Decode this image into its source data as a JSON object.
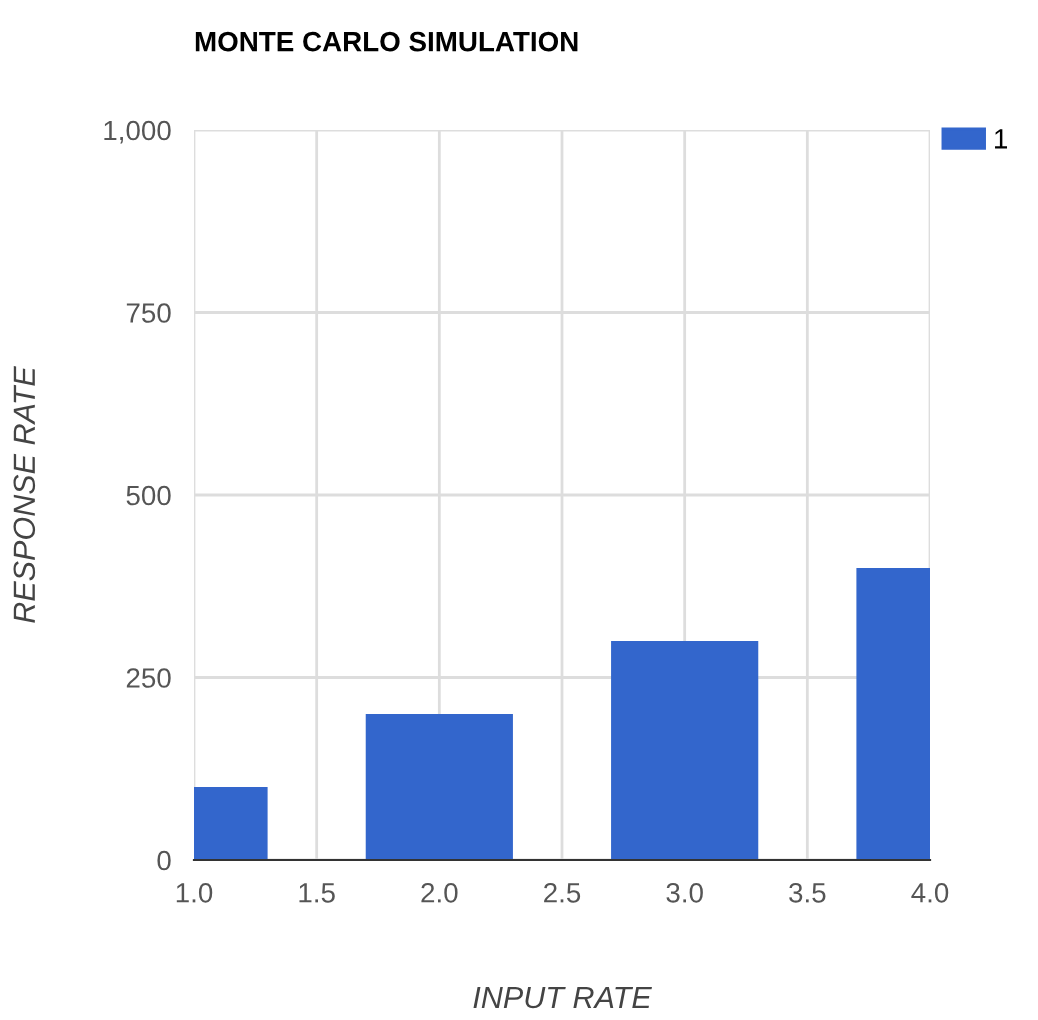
{
  "chart_data": {
    "type": "bar",
    "title": "MONTE CARLO SIMULATION",
    "xlabel": "INPUT RATE",
    "ylabel": "RESPONSE RATE",
    "x": [
      1.0,
      2.0,
      3.0,
      4.0
    ],
    "series": [
      {
        "name": "1",
        "color": "#3366cc",
        "values": [
          100,
          200,
          300,
          400
        ]
      }
    ],
    "xlim": [
      1.0,
      4.0
    ],
    "xticks": [
      {
        "value": 1.0,
        "label": "1.0"
      },
      1.5,
      {
        "value": 2.0,
        "label": "2.0"
      },
      2.5,
      {
        "value": 3.0,
        "label": "3.0"
      },
      3.5,
      {
        "value": 4.0,
        "label": "4.0"
      }
    ],
    "ylim": [
      0,
      1000
    ],
    "yticks": [
      0,
      250,
      500,
      750,
      {
        "value": 1000,
        "label": "1,000"
      }
    ],
    "grid": true,
    "legend": "top right"
  }
}
